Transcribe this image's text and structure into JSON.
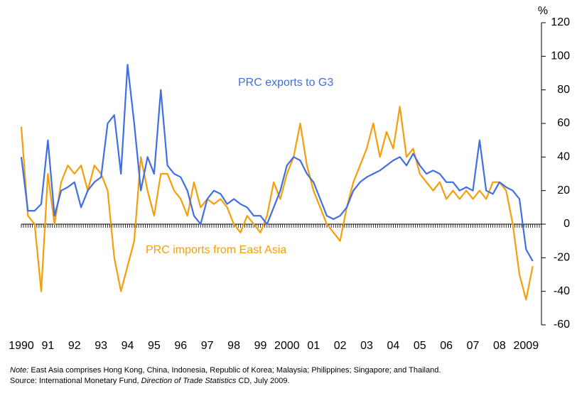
{
  "chart_data": {
    "type": "line",
    "y_label": "%",
    "annotations": [
      "PRC exports to G3",
      "PRC imports from East Asia"
    ],
    "note": {
      "label": "Note:",
      "text": " East Asia comprises Hong Kong, China, Indonesia, Republic of Korea; Malaysia; Philippines; Singapore; and Thailand."
    },
    "source": {
      "prefix": "Source: International Monetary Fund, ",
      "title": "Direction of Trade Statistics",
      "suffix": " CD, July 2009."
    },
    "x": [
      1990,
      1990.25,
      1990.5,
      1990.75,
      1991,
      1991.25,
      1991.5,
      1991.75,
      1992,
      1992.25,
      1992.5,
      1992.75,
      1993,
      1993.25,
      1993.5,
      1993.75,
      1994,
      1994.25,
      1994.5,
      1994.75,
      1995,
      1995.25,
      1995.5,
      1995.75,
      1996,
      1996.25,
      1996.5,
      1996.75,
      1997,
      1997.25,
      1997.5,
      1997.75,
      1998,
      1998.25,
      1998.5,
      1998.75,
      1999,
      1999.25,
      1999.5,
      1999.75,
      2000,
      2000.25,
      2000.5,
      2000.75,
      2001,
      2001.25,
      2001.5,
      2001.75,
      2002,
      2002.25,
      2002.5,
      2002.75,
      2003,
      2003.25,
      2003.5,
      2003.75,
      2004,
      2004.25,
      2004.5,
      2004.75,
      2005,
      2005.25,
      2005.5,
      2005.75,
      2006,
      2006.25,
      2006.5,
      2006.75,
      2007,
      2007.25,
      2007.5,
      2007.75,
      2008,
      2008.25,
      2008.5,
      2008.75,
      2009,
      2009.25
    ],
    "series": [
      {
        "name": "PRC exports to G3",
        "color": "#3f6fe3",
        "values": [
          40,
          8,
          8,
          12,
          50,
          5,
          20,
          22,
          25,
          10,
          20,
          25,
          28,
          60,
          65,
          30,
          95,
          60,
          20,
          40,
          30,
          80,
          35,
          30,
          28,
          20,
          5,
          0,
          15,
          20,
          18,
          12,
          15,
          12,
          10,
          5,
          5,
          0,
          10,
          20,
          35,
          40,
          38,
          30,
          25,
          15,
          5,
          3,
          5,
          10,
          20,
          25,
          28,
          30,
          32,
          35,
          38,
          40,
          35,
          42,
          35,
          30,
          32,
          30,
          25,
          25,
          20,
          22,
          20,
          50,
          20,
          18,
          25,
          22,
          20,
          15,
          -15,
          -22
        ]
      },
      {
        "name": "PRC imports from East Asia",
        "color": "#f59e0b",
        "values": [
          58,
          5,
          0,
          -40,
          30,
          0,
          25,
          35,
          30,
          35,
          20,
          35,
          30,
          20,
          -20,
          -40,
          -25,
          -10,
          40,
          20,
          5,
          30,
          30,
          20,
          15,
          5,
          25,
          10,
          15,
          12,
          15,
          10,
          0,
          -5,
          5,
          0,
          -5,
          5,
          25,
          15,
          30,
          40,
          60,
          35,
          20,
          10,
          0,
          -5,
          -10,
          10,
          25,
          35,
          45,
          60,
          40,
          55,
          45,
          70,
          40,
          45,
          30,
          25,
          20,
          25,
          15,
          20,
          15,
          20,
          15,
          20,
          15,
          25,
          25,
          20,
          0,
          -30,
          -45,
          -25
        ]
      }
    ],
    "xlim": [
      1990,
      2009.5
    ],
    "xticks": [
      {
        "value": 1990,
        "label": "1990"
      },
      {
        "value": 1991,
        "label": "91"
      },
      {
        "value": 1992,
        "label": "92"
      },
      {
        "value": 1993,
        "label": "93"
      },
      {
        "value": 1994,
        "label": "94"
      },
      {
        "value": 1995,
        "label": "95"
      },
      {
        "value": 1996,
        "label": "96"
      },
      {
        "value": 1997,
        "label": "97"
      },
      {
        "value": 1998,
        "label": "98"
      },
      {
        "value": 1999,
        "label": "99"
      },
      {
        "value": 2000,
        "label": "2000"
      },
      {
        "value": 2001,
        "label": "01"
      },
      {
        "value": 2002,
        "label": "02"
      },
      {
        "value": 2003,
        "label": "03"
      },
      {
        "value": 2004,
        "label": "04"
      },
      {
        "value": 2005,
        "label": "05"
      },
      {
        "value": 2006,
        "label": "06"
      },
      {
        "value": 2007,
        "label": "07"
      },
      {
        "value": 2008,
        "label": "08"
      },
      {
        "value": 2009,
        "label": "2009"
      }
    ],
    "ylim": [
      -60,
      120
    ],
    "yticks": [
      -60,
      -40,
      -20,
      0,
      20,
      40,
      60,
      80,
      100,
      120
    ]
  }
}
